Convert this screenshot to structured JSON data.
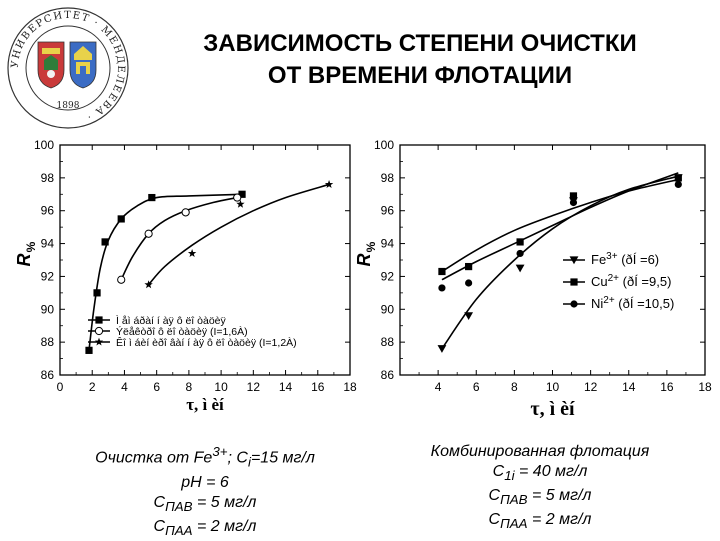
{
  "title": {
    "line1": "ЗАВИСИМОСТЬ СТЕПЕНИ ОЧИСТКИ",
    "line2": "ОТ ВРЕМЕНИ ФЛОТАЦИИ"
  },
  "logo": {
    "ring_text": "УНИВЕРСИТЕТ · МЕНДЕЛЕЕВА ·",
    "year": "1898"
  },
  "chart_data": [
    {
      "type": "line",
      "xlabel": "τ, ì èí",
      "ylabel_main": "R",
      "ylabel_sub": "%",
      "xlim": [
        0,
        18
      ],
      "ylim": [
        86,
        100
      ],
      "xticks": [
        "0",
        "2",
        "4",
        "6",
        "8",
        "10",
        "12",
        "14",
        "16",
        "18"
      ],
      "yticks": [
        "86",
        "88",
        "90",
        "92",
        "94",
        "96",
        "98",
        "100"
      ],
      "legend_position": "bottom-right",
      "series": [
        {
          "name": "Ì åì áðàí í àÿ ô ëî òàöèÿ",
          "marker": "square",
          "points": [
            [
              1.8,
              87.5
            ],
            [
              2.3,
              91.0
            ],
            [
              2.8,
              94.1
            ],
            [
              3.8,
              95.5
            ],
            [
              5.7,
              96.8
            ],
            [
              11.3,
              97.0
            ]
          ],
          "curve": [
            [
              1.8,
              87.5
            ],
            [
              2.1,
              90.0
            ],
            [
              2.5,
              92.5
            ],
            [
              3.0,
              94.2
            ],
            [
              3.8,
              95.5
            ],
            [
              4.8,
              96.3
            ],
            [
              6.0,
              96.8
            ],
            [
              8.0,
              96.9
            ],
            [
              11.3,
              97.0
            ]
          ]
        },
        {
          "name": "Ýëåêòðî ô ëî òàöèÿ (I=1,6À)",
          "marker": "circle",
          "points": [
            [
              3.8,
              91.8
            ],
            [
              5.5,
              94.6
            ],
            [
              7.8,
              95.9
            ],
            [
              11.0,
              96.8
            ]
          ],
          "curve": [
            [
              3.8,
              91.8
            ],
            [
              4.5,
              93.2
            ],
            [
              5.5,
              94.6
            ],
            [
              6.5,
              95.4
            ],
            [
              7.8,
              96.0
            ],
            [
              9.5,
              96.5
            ],
            [
              11.0,
              96.8
            ]
          ]
        },
        {
          "name": "Êî ì áèí èðî âàí í àÿ ô ëî òàöèÿ (I=1,2À)",
          "marker": "star",
          "points": [
            [
              5.5,
              91.5
            ],
            [
              8.2,
              93.4
            ],
            [
              11.2,
              96.4
            ],
            [
              16.7,
              97.6
            ]
          ],
          "curve": [
            [
              5.5,
              91.5
            ],
            [
              6.5,
              92.6
            ],
            [
              8.2,
              93.9
            ],
            [
              10.0,
              95.0
            ],
            [
              12.0,
              96.0
            ],
            [
              14.0,
              96.8
            ],
            [
              16.7,
              97.6
            ]
          ]
        }
      ]
    },
    {
      "type": "line",
      "xlabel": "τ, ì èí",
      "ylabel_main": "R",
      "ylabel_sub": "%",
      "xlim": [
        2,
        18
      ],
      "ylim": [
        86,
        100
      ],
      "xticks": [
        "4",
        "6",
        "8",
        "10",
        "12",
        "14",
        "16",
        "18"
      ],
      "yticks": [
        "86",
        "88",
        "90",
        "92",
        "94",
        "96",
        "98",
        "100"
      ],
      "legend_position": "center-right",
      "series": [
        {
          "name": "Fe",
          "sup": "3+",
          "suffix": " (ðÍ =6)",
          "marker": "triangle-down",
          "points": [
            [
              4.2,
              87.6
            ],
            [
              5.6,
              89.6
            ],
            [
              8.3,
              92.5
            ],
            [
              11.1,
              96.6
            ],
            [
              16.6,
              98.0
            ]
          ],
          "curve": [
            [
              4.2,
              87.6
            ],
            [
              6.0,
              90.6
            ],
            [
              8.0,
              93.0
            ],
            [
              10.0,
              94.9
            ],
            [
              12.0,
              96.3
            ],
            [
              14.0,
              97.3
            ],
            [
              16.6,
              98.1
            ]
          ]
        },
        {
          "name": "Cu",
          "sup": "2+",
          "suffix": " (ðÍ =9,5)",
          "marker": "square",
          "points": [
            [
              4.2,
              92.3
            ],
            [
              5.6,
              92.6
            ],
            [
              8.3,
              94.1
            ],
            [
              11.1,
              96.9
            ],
            [
              16.6,
              98.0
            ]
          ],
          "curve": [
            [
              4.2,
              91.8
            ],
            [
              6.0,
              92.9
            ],
            [
              8.0,
              94.0
            ],
            [
              10.0,
              95.1
            ],
            [
              12.0,
              96.2
            ],
            [
              14.0,
              97.2
            ],
            [
              16.6,
              98.3
            ]
          ]
        },
        {
          "name": "Ni",
          "sup": "2+",
          "suffix": " (ðÍ =10,5)",
          "marker": "circle",
          "points": [
            [
              4.2,
              91.3
            ],
            [
              5.6,
              91.6
            ],
            [
              8.3,
              93.4
            ],
            [
              11.1,
              96.5
            ],
            [
              16.6,
              97.6
            ]
          ],
          "curve": [
            [
              4.2,
              92.3
            ],
            [
              6.0,
              93.6
            ],
            [
              8.0,
              94.8
            ],
            [
              10.0,
              95.7
            ],
            [
              12.0,
              96.5
            ],
            [
              14.0,
              97.2
            ],
            [
              16.6,
              97.9
            ]
          ]
        }
      ]
    }
  ],
  "captions": [
    {
      "line1": "Очистка от Fe",
      "line1_sup": "3+",
      "line1_mid": "; C",
      "line1_sub": "i",
      "line1_end": "=15 мг/л",
      "line2": "pH = 6",
      "line3_pre": "C",
      "line3_sub": "ПАВ",
      "line3_post": " = 5 мг/л",
      "line4_pre": "C",
      "line4_sub": "ПАА",
      "line4_post": " = 2 мг/л"
    },
    {
      "line1": "Комбинированная флотация",
      "line2_pre": "C",
      "line2_sub": "1i",
      "line2_post": " = 40 мг/л",
      "line3_pre": "C",
      "line3_sub": "ПАВ",
      "line3_post": " = 5 мг/л",
      "line4_pre": "C",
      "line4_sub": "ПАА",
      "line4_post": " = 2 мг/л"
    }
  ]
}
